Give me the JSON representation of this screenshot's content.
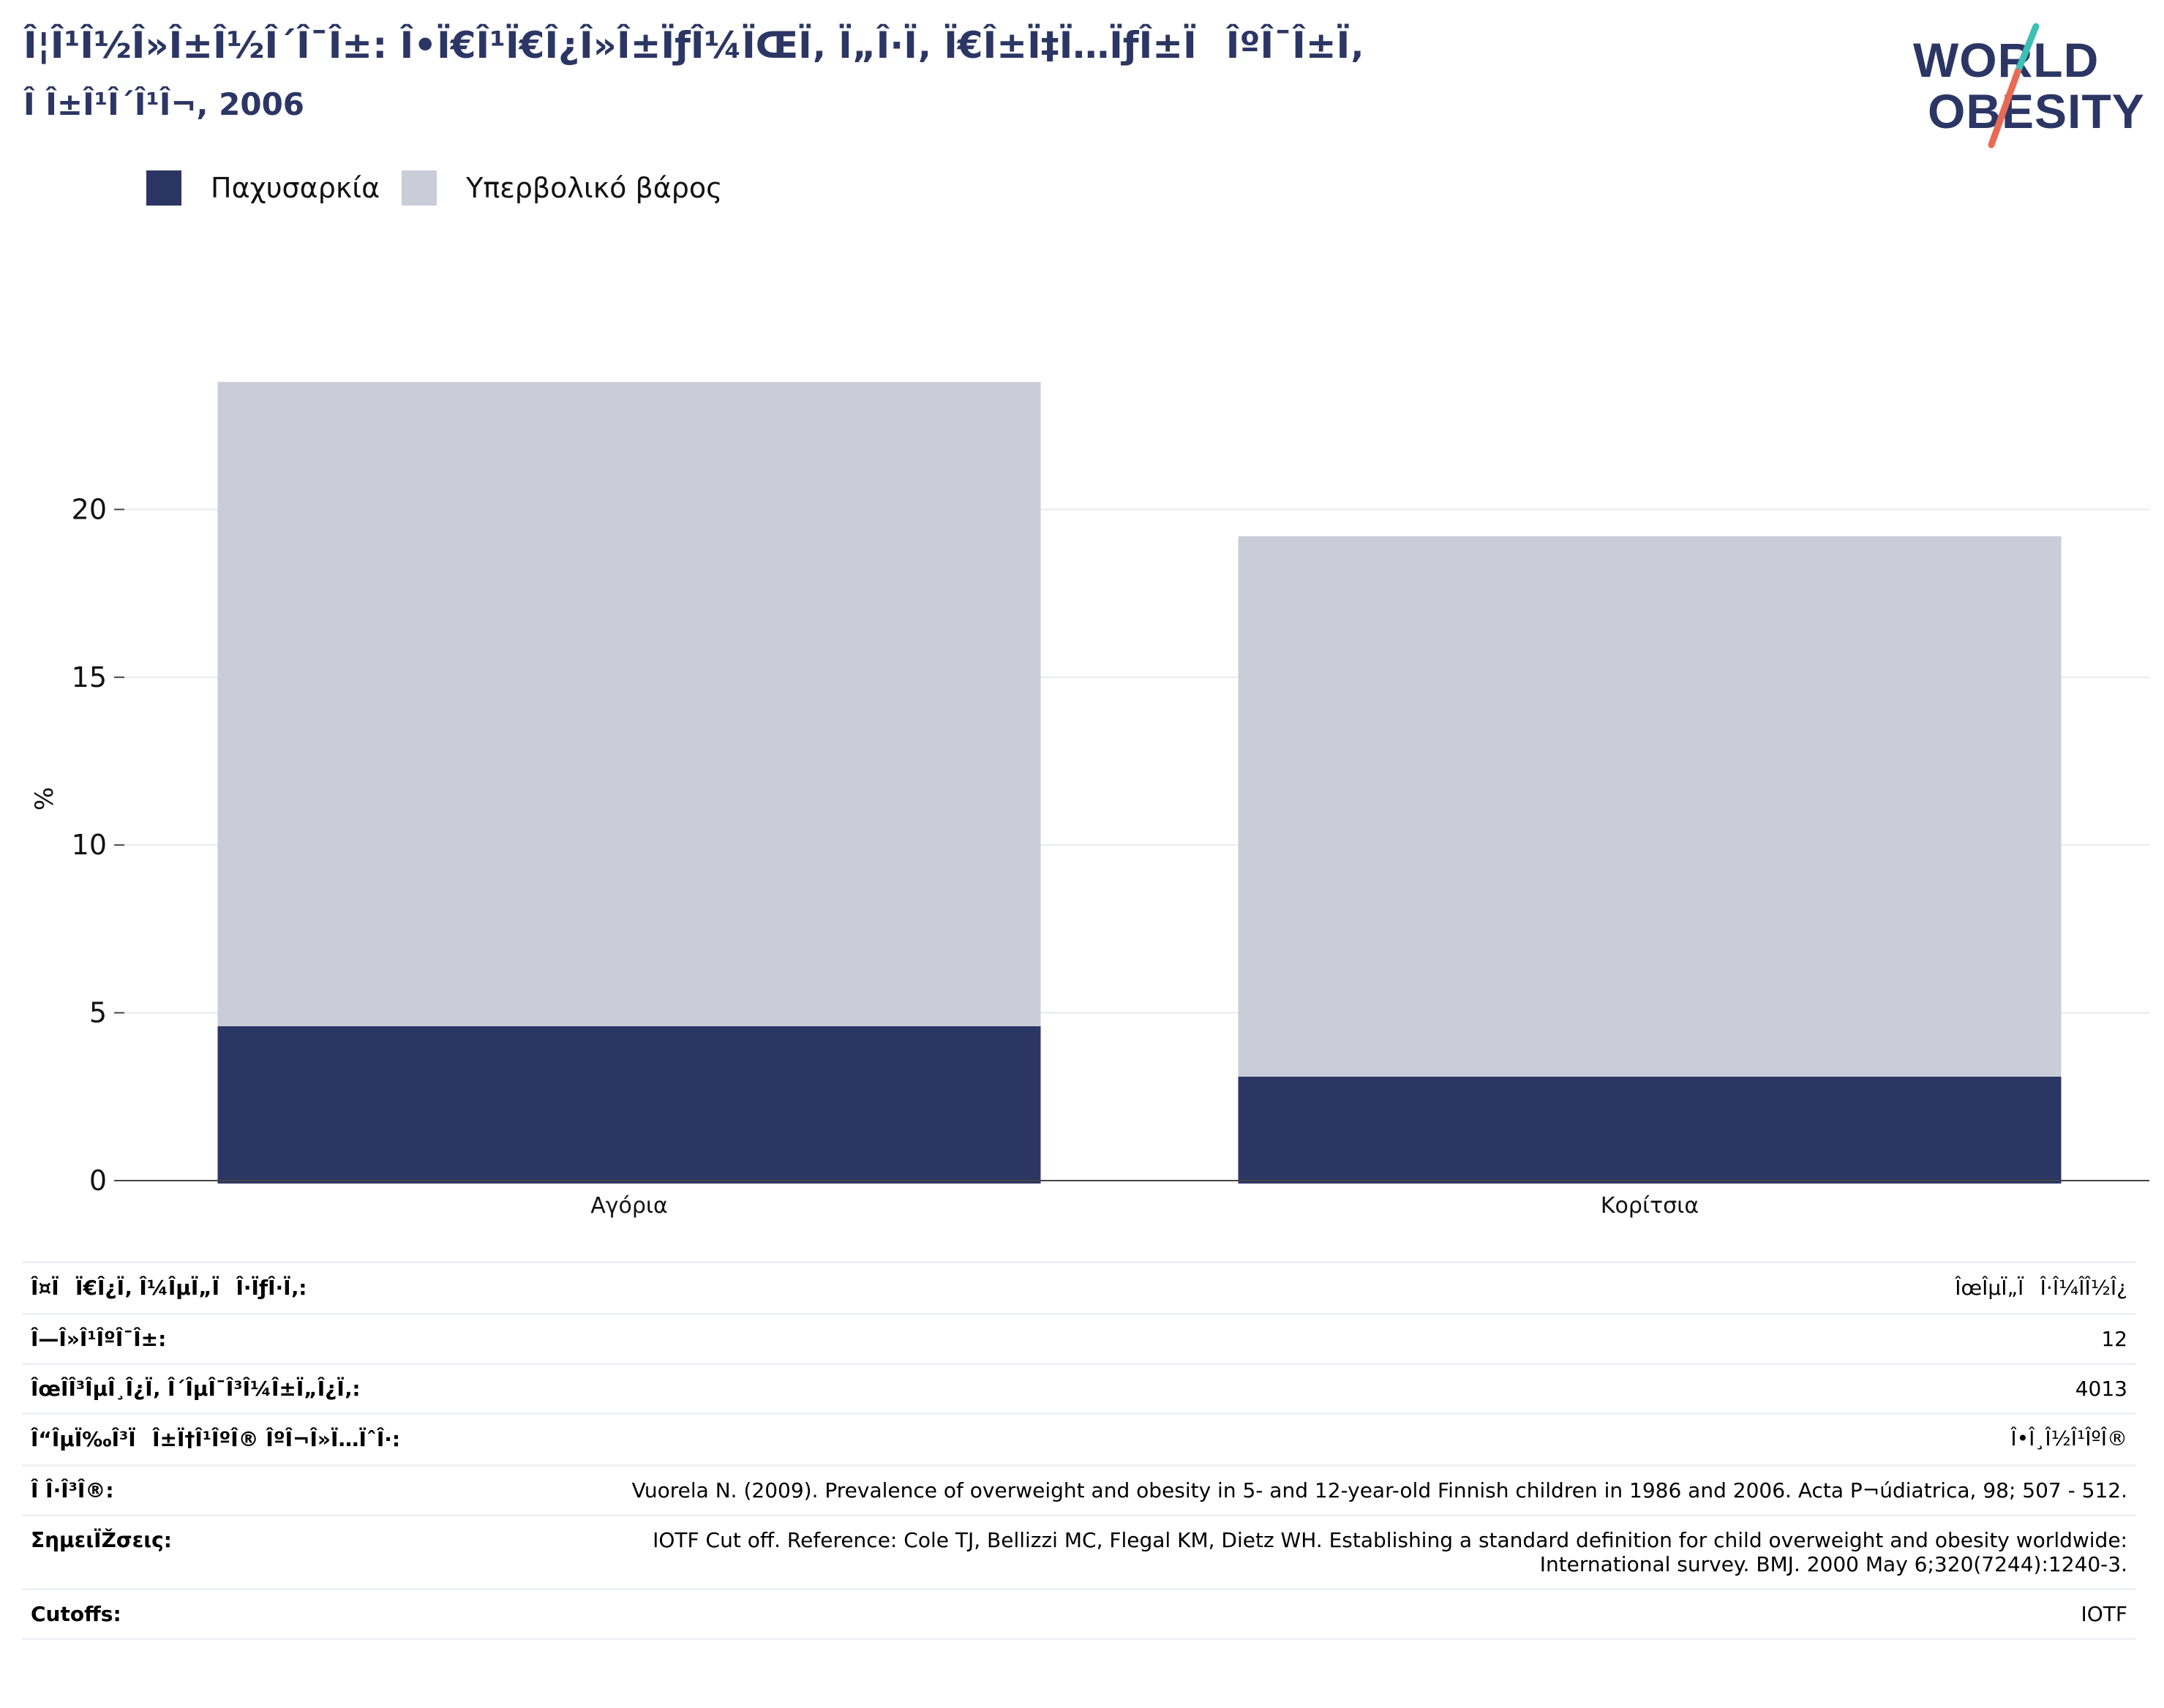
{
  "header": {
    "title_line1": "Î¦Î¹Î½Î»Î±Î½Î´Î¯Î±: Î•Ï€Î¹Ï€Î¿Î»Î±ÏƒÎ¼ÏŒÏ‚ Ï„Î·Ï‚ Ï€Î±Ï‡Ï…ÏƒÎ±ÏÎºÎ¯Î±Ï‚",
    "title_line2": "Î Î±Î¹Î´Î¹Î¬, 2006"
  },
  "logo": {
    "line1": "WORLD",
    "line2": "OBESITY"
  },
  "colors": {
    "title": "#2b3664",
    "obesity": "#2b3664",
    "overweight": "#caccd8",
    "slash_teal": "#3ebfb5",
    "slash_coral": "#e86a55"
  },
  "legend": [
    {
      "label": "Παχυσαρκία",
      "color": "#2b3664"
    },
    {
      "label": "Υπερβολικό βάρος",
      "color": "#caccd8"
    }
  ],
  "chart_data": {
    "type": "bar",
    "stacked": true,
    "categories": [
      "Αγόρια",
      "Κορίτσια"
    ],
    "series": [
      {
        "name": "Παχυσαρκία",
        "values": [
          4.6,
          3.1
        ]
      },
      {
        "name": "Υπερβολικό βάρος",
        "values": [
          19.2,
          16.1
        ]
      }
    ],
    "ylabel": "%",
    "ylim": [
      0,
      24.5
    ],
    "yticks": [
      0,
      5,
      10,
      15,
      20
    ],
    "grid": true,
    "legend_position": "top-left"
  },
  "info": [
    {
      "key": "Î¤ÏÏ€Î¿Ï‚ Î¼ÎµÏ„ÏÎ·ÏƒÎ·Ï‚:",
      "value": "ÎœÎµÏ„ÏÎ·Î¼Î­Î½Î¿"
    },
    {
      "key": "Î—Î»Î¹ÎºÎ¯Î±:",
      "value": "12"
    },
    {
      "key": "ÎœÎ­Î³ÎµÎ¸Î¿Ï‚ Î´ÎµÎ¯Î³Î¼Î±Ï„Î¿Ï‚:",
      "value": "4013"
    },
    {
      "key": "Î“ÎµÏ‰Î³ÏÎ±Ï†Î¹ÎºÎ® ÎºÎ¬Î»Ï…ÏˆÎ·:",
      "value": "Î•Î¸Î½Î¹ÎºÎ®"
    },
    {
      "key": "Î Î·Î³Î®:",
      "value": "Vuorela N. (2009). Prevalence of overweight and obesity in 5- and 12-year-old Finnish children in 1986 and 2006. Acta P¬údiatrica, 98; 507 - 512."
    },
    {
      "key": "ΣημειÏŽσεις:",
      "value": "IOTF Cut off. Reference: Cole TJ, Bellizzi MC, Flegal KM, Dietz WH. Establishing a standard definition for child overweight and obesity worldwide: International survey. BMJ. 2000 May 6;320(7244):1240-3."
    },
    {
      "key": "Cutoffs:",
      "value": "IOTF"
    }
  ]
}
